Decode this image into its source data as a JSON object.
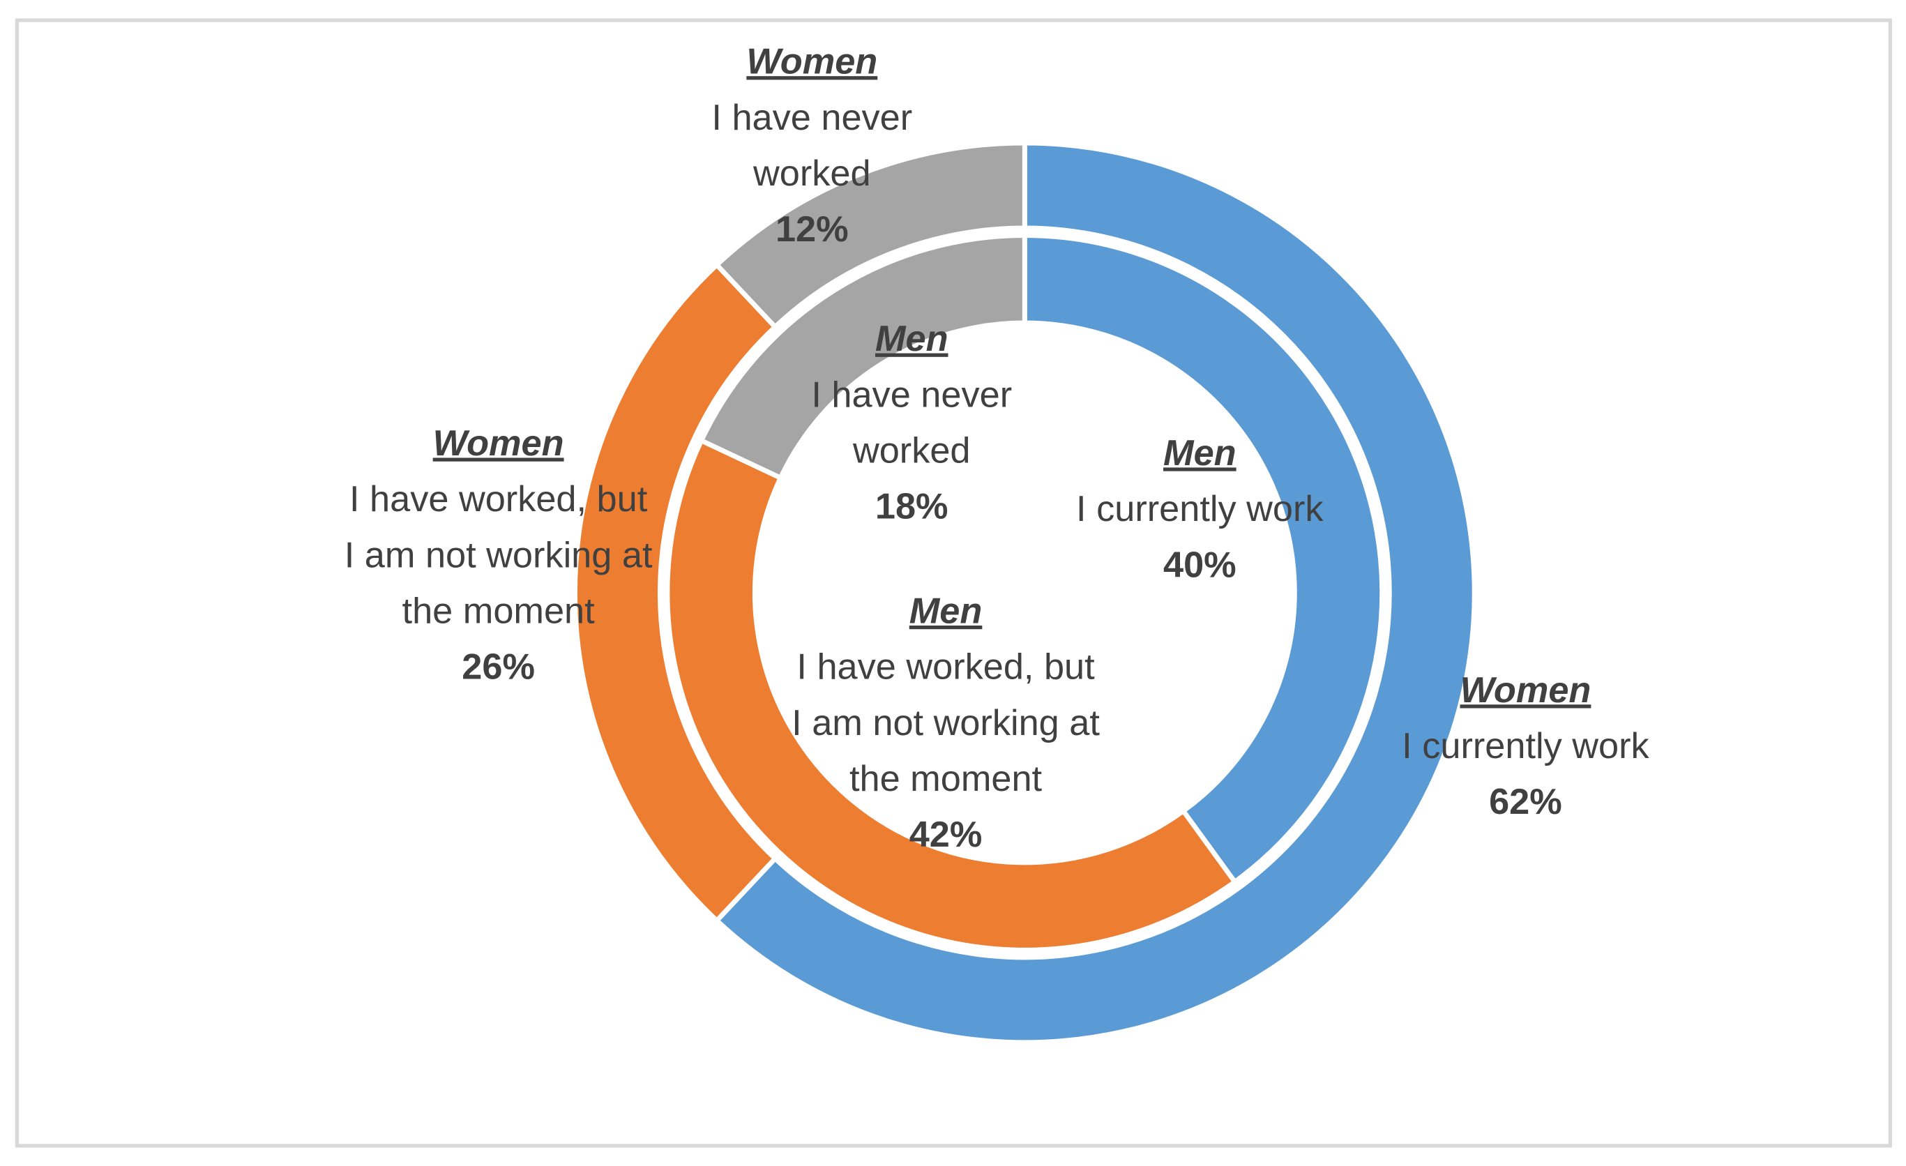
{
  "chart_data": {
    "type": "doughnut",
    "categories": [
      "I currently work",
      "I have worked, but I am not working at the moment",
      "I have never worked"
    ],
    "colors": [
      "#5b9bd5",
      "#ed7d31",
      "#a5a5a5"
    ],
    "series": [
      {
        "name": "Women",
        "values": [
          62,
          26,
          12
        ],
        "value_labels": [
          "62%",
          "26%",
          "12%"
        ]
      },
      {
        "name": "Men",
        "values": [
          40,
          42,
          18
        ],
        "value_labels": [
          "40%",
          "42%",
          "18%"
        ]
      }
    ]
  }
}
